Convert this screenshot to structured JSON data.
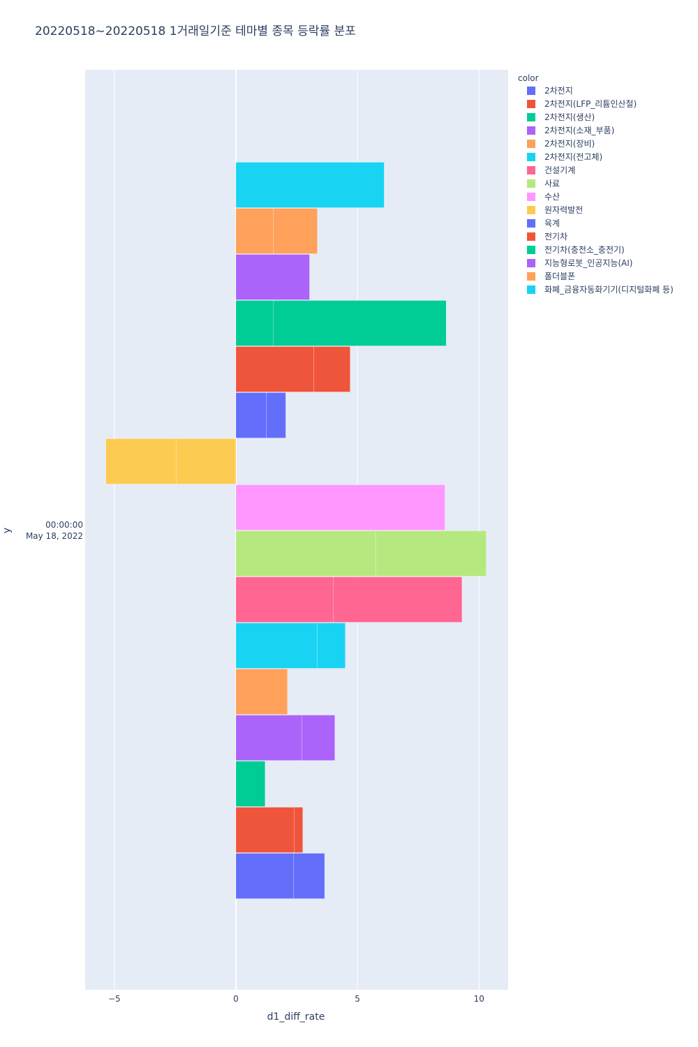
{
  "chart_data": {
    "type": "bar",
    "orientation": "horizontal",
    "barmode": "group-stacked",
    "title": "20220518~20220518 1거래일기준 테마별 종목 등락률 분포",
    "xlabel": "d1_diff_rate",
    "ylabel": "y",
    "xlim": [
      -6.2,
      11.2
    ],
    "x_ticks": [
      -5,
      0,
      5,
      10
    ],
    "x_tick_labels": [
      "−5",
      "0",
      "5",
      "10"
    ],
    "y_category_label": [
      "00:00:00",
      "May 18, 2022"
    ],
    "grid": true,
    "legend_title": "color",
    "legend_position": "right",
    "series": [
      {
        "name": "2차전지",
        "color": "#636efa",
        "segments": [
          2.38,
          1.27
        ]
      },
      {
        "name": "2차전지(LFP_리튬인산철)",
        "color": "#ef553b",
        "segments": [
          2.4,
          0.35
        ]
      },
      {
        "name": "2차전지(생산)",
        "color": "#00cc96",
        "segments": [
          1.2
        ]
      },
      {
        "name": "2차전지(소재_부품)",
        "color": "#ab63fa",
        "segments": [
          2.72,
          1.35
        ]
      },
      {
        "name": "2차전지(장비)",
        "color": "#ffa15a",
        "segments": [
          2.12
        ]
      },
      {
        "name": "2차전지(전고체)",
        "color": "#19d3f3",
        "segments": [
          3.35,
          1.15
        ]
      },
      {
        "name": "건설기계",
        "color": "#ff6692",
        "segments": [
          4.0,
          5.3
        ]
      },
      {
        "name": "사료",
        "color": "#b6e880",
        "segments": [
          5.75,
          4.55
        ]
      },
      {
        "name": "수산",
        "color": "#ff97ff",
        "segments": [
          8.6
        ]
      },
      {
        "name": "원자력발전",
        "color": "#fecb52",
        "segments": [
          -2.45,
          -2.9
        ]
      },
      {
        "name": "육계",
        "color": "#636efa",
        "segments": [
          1.25,
          0.8
        ]
      },
      {
        "name": "전기차",
        "color": "#ef553b",
        "segments": [
          3.2,
          1.5
        ]
      },
      {
        "name": "전기차(충전소_충전기)",
        "color": "#00cc96",
        "segments": [
          1.55,
          7.1
        ]
      },
      {
        "name": "지능형로봇_인공지능(AI)",
        "color": "#ab63fa",
        "segments": [
          3.03
        ]
      },
      {
        "name": "폴더블폰",
        "color": "#ffa15a",
        "segments": [
          1.55,
          1.8
        ]
      },
      {
        "name": "화폐_금융자동화기기(디지털화폐 등)",
        "color": "#19d3f3",
        "segments": [
          6.1
        ]
      }
    ]
  },
  "colors": {
    "plot_background": "#e5ecf6",
    "grid": "#ffffff",
    "text": "#2a3f5f"
  }
}
